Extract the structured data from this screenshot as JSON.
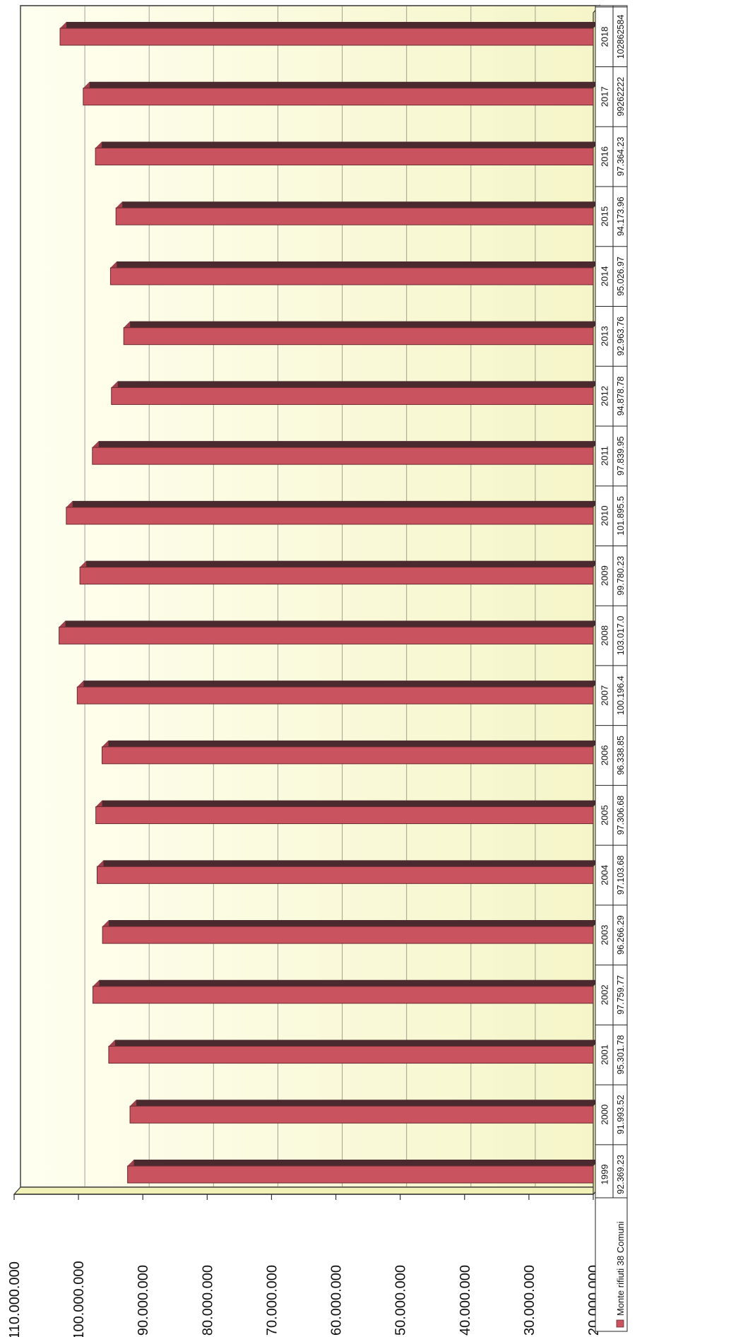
{
  "chart_data": {
    "type": "bar",
    "orientation": "horizontal",
    "three_d": true,
    "categories": [
      "1999",
      "2000",
      "2001",
      "2002",
      "2003",
      "2004",
      "2005",
      "2006",
      "2007",
      "2008",
      "2009",
      "2010",
      "2011",
      "2012",
      "2013",
      "2014",
      "2015",
      "2016",
      "2017",
      "2018"
    ],
    "series": [
      {
        "name": "Monte rifiuti 38 Comuni",
        "color": "#c9545f",
        "values": [
          92369230,
          91993520,
          95301780,
          97759770,
          96266290,
          97103680,
          97306680,
          96338850,
          100196400,
          103017000,
          99780230,
          101895500,
          97839950,
          94878780,
          92963760,
          95026970,
          94173960,
          97364230,
          99262222,
          102862584
        ]
      }
    ],
    "table_values": [
      "92.369.23",
      "91.993.52",
      "95.301.78",
      "97.759.77",
      "96.266.29",
      "97.103.68",
      "97.306.68",
      "96.338.85",
      "100.196.4",
      "103.017.0",
      "99.780.23",
      "101.895.5",
      "97.839.95",
      "94.878.78",
      "92.963.76",
      "95.026.97",
      "94.173.96",
      "97.364.23",
      "99262222",
      "102862584"
    ],
    "value_axis": {
      "min": 20000000,
      "max": 110000000,
      "ticks": [
        20000000,
        30000000,
        40000000,
        50000000,
        60000000,
        70000000,
        80000000,
        90000000,
        100000000,
        110000000
      ],
      "tick_labels": [
        "20.000.000",
        "30.000.000",
        "40.000.000",
        "50.000.000",
        "60.000.000",
        "70.000.000",
        "80.000.000",
        "90.000.000",
        "100.000.000",
        "110.000.000"
      ]
    },
    "grid": true,
    "legend": "data-table",
    "wall_color": "#fbfbd6",
    "floor_color": "#f1f1b8"
  }
}
